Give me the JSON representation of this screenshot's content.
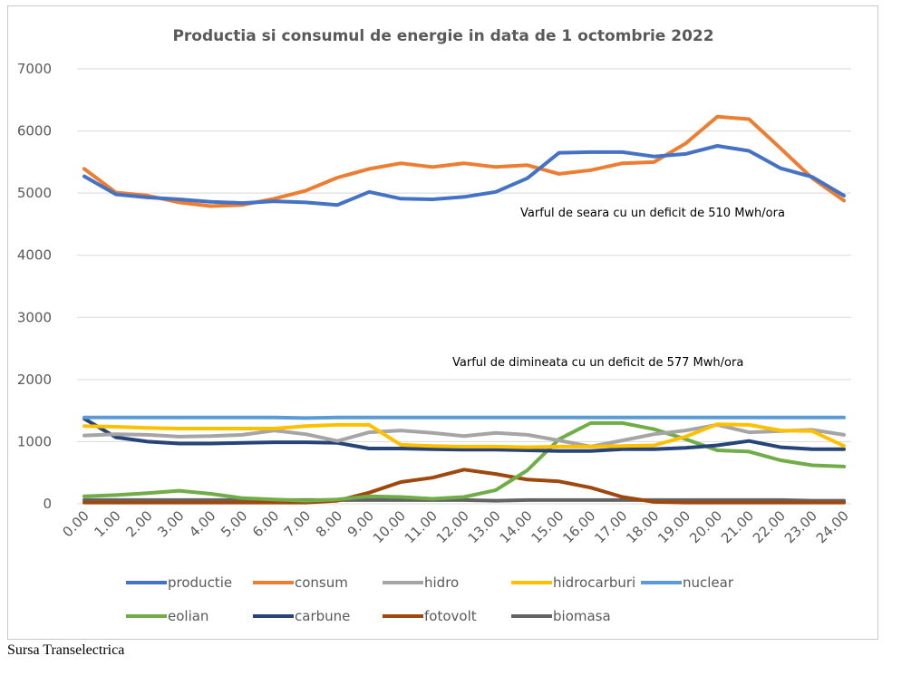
{
  "chart_data": {
    "type": "line",
    "title": "Productia si consumul de energie in data de 1 octombrie 2022",
    "xlabel": "",
    "ylabel": "",
    "ylim": [
      0,
      7000
    ],
    "yticks": [
      "0",
      "1000",
      "2000",
      "3000",
      "4000",
      "5000",
      "6000",
      "7000"
    ],
    "grid": "horizontal",
    "legend_position": "bottom",
    "categories": [
      "0.00",
      "1.00",
      "2.00",
      "3.00",
      "4.00",
      "5.00",
      "6.00",
      "7.00",
      "8.00",
      "9.00",
      "10.00",
      "11.00",
      "12.00",
      "13.00",
      "14.00",
      "15.00",
      "16.00",
      "17.00",
      "18.00",
      "19.00",
      "20.00",
      "21.00",
      "22.00",
      "23.00",
      "24.00"
    ],
    "series": [
      {
        "name": "productie",
        "color": "#4472C4",
        "values": [
          5270,
          4980,
          4930,
          4900,
          4860,
          4840,
          4870,
          4850,
          4810,
          5020,
          4910,
          4900,
          4940,
          5020,
          5240,
          5650,
          5660,
          5660,
          5590,
          5630,
          5760,
          5680,
          5400,
          5260,
          4960
        ]
      },
      {
        "name": "consum",
        "color": "#ED7D31",
        "values": [
          5390,
          5010,
          4960,
          4850,
          4790,
          4810,
          4910,
          5040,
          5250,
          5390,
          5480,
          5420,
          5480,
          5420,
          5450,
          5310,
          5370,
          5480,
          5500,
          5800,
          6230,
          6190,
          5720,
          5240,
          4880
        ]
      },
      {
        "name": "hidro",
        "color": "#A5A5A5",
        "values": [
          1100,
          1120,
          1110,
          1080,
          1090,
          1110,
          1180,
          1120,
          1010,
          1150,
          1180,
          1140,
          1090,
          1140,
          1110,
          1020,
          920,
          1020,
          1120,
          1180,
          1270,
          1150,
          1170,
          1190,
          1110
        ]
      },
      {
        "name": "hidrocarburi",
        "color": "#FFC000",
        "values": [
          1250,
          1240,
          1220,
          1210,
          1210,
          1210,
          1210,
          1250,
          1270,
          1270,
          950,
          930,
          920,
          920,
          910,
          920,
          920,
          930,
          940,
          1080,
          1280,
          1270,
          1180,
          1170,
          930
        ]
      },
      {
        "name": "nuclear",
        "color": "#5B9BD5",
        "values": [
          1390,
          1390,
          1390,
          1390,
          1390,
          1390,
          1390,
          1380,
          1390,
          1390,
          1390,
          1390,
          1390,
          1390,
          1390,
          1390,
          1390,
          1390,
          1390,
          1390,
          1390,
          1390,
          1390,
          1390,
          1390
        ]
      },
      {
        "name": "eolian",
        "color": "#70AD47",
        "values": [
          120,
          140,
          170,
          210,
          160,
          90,
          70,
          50,
          70,
          120,
          110,
          80,
          110,
          220,
          540,
          1040,
          1300,
          1300,
          1200,
          1040,
          860,
          840,
          700,
          620,
          600
        ]
      },
      {
        "name": "carbune",
        "color": "#264478",
        "values": [
          1370,
          1070,
          1000,
          970,
          970,
          980,
          990,
          990,
          980,
          890,
          890,
          880,
          870,
          870,
          860,
          850,
          850,
          880,
          880,
          900,
          940,
          1010,
          910,
          880,
          880
        ]
      },
      {
        "name": "fotovolt",
        "color": "#9E480E",
        "values": [
          20,
          20,
          20,
          20,
          20,
          20,
          20,
          20,
          50,
          180,
          350,
          420,
          550,
          480,
          390,
          360,
          260,
          110,
          30,
          20,
          20,
          20,
          20,
          20,
          20
        ]
      },
      {
        "name": "biomasa",
        "color": "#636363",
        "values": [
          60,
          60,
          60,
          60,
          60,
          60,
          60,
          60,
          60,
          60,
          60,
          60,
          60,
          50,
          60,
          60,
          60,
          60,
          60,
          60,
          60,
          60,
          60,
          50,
          50
        ]
      }
    ],
    "annotations": [
      {
        "text": "Varful de seara cu un deficit de 510 Mwh/ora"
      },
      {
        "text": "Varful de dimineata cu un deficit de 577 Mwh/ora"
      }
    ]
  },
  "source_note": "Sursa Transelectrica"
}
